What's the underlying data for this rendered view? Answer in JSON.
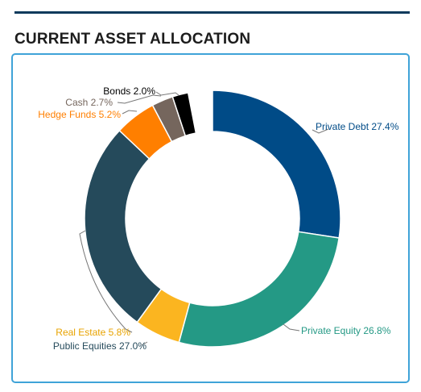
{
  "page": {
    "title": "CURRENT ASSET ALLOCATION"
  },
  "colors": {
    "rule": "#0b3a5c",
    "card_border": "#3fa3d8"
  },
  "chart_data": {
    "type": "pie",
    "variant": "donut",
    "title": "CURRENT ASSET ALLOCATION",
    "unit": "%",
    "start_angle_deg": 0,
    "direction": "clockwise",
    "slices": [
      {
        "label": "Private Debt",
        "value": 27.4,
        "color": "#004b87"
      },
      {
        "label": "Private Equity",
        "value": 26.8,
        "color": "#249985"
      },
      {
        "label": "Real Estate",
        "value": 5.8,
        "color": "#fbb520"
      },
      {
        "label": "Public Equities",
        "value": 27.0,
        "color": "#254a5b"
      },
      {
        "label": "Hedge Funds",
        "value": 5.2,
        "color": "#ff7f00"
      },
      {
        "label": "Cash",
        "value": 2.7,
        "color": "#75665d"
      },
      {
        "label": "Bonds",
        "value": 2.0,
        "color": "#000000"
      }
    ],
    "gap_after_last": true,
    "labels": [
      {
        "text": "Private Debt 27.4%",
        "color": "#004b87"
      },
      {
        "text": "Private Equity 26.8%",
        "color": "#249985"
      },
      {
        "text": "Real Estate 5.8%",
        "color": "#e8a300"
      },
      {
        "text": "Public Equities 27.0%",
        "color": "#254a5b"
      },
      {
        "text": "Hedge Funds 5.2%",
        "color": "#ff7f00"
      },
      {
        "text": "Cash 2.7%",
        "color": "#75665d"
      },
      {
        "text": "Bonds 2.0%",
        "color": "#000000"
      }
    ]
  }
}
